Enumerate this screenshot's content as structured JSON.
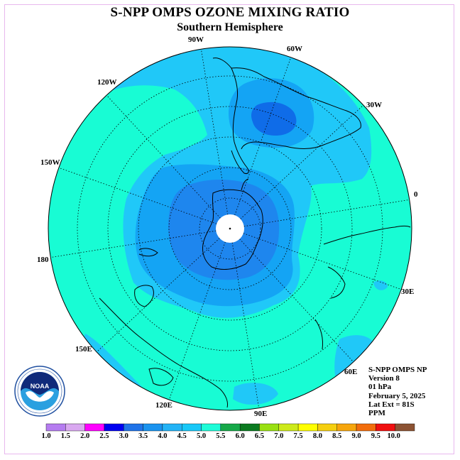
{
  "title": "S-NPP OMPS OZONE MIXING RATIO",
  "subtitle": "Southern Hemisphere",
  "longitude_labels": [
    {
      "id": "90W",
      "text": "90W"
    },
    {
      "id": "60W",
      "text": "60W"
    },
    {
      "id": "30W",
      "text": "30W"
    },
    {
      "id": "0",
      "text": "0"
    },
    {
      "id": "30E",
      "text": "30E"
    },
    {
      "id": "60E",
      "text": "60E"
    },
    {
      "id": "90E",
      "text": "90E"
    },
    {
      "id": "120E",
      "text": "120E"
    },
    {
      "id": "150E",
      "text": "150E"
    },
    {
      "id": "180",
      "text": "180"
    },
    {
      "id": "150W",
      "text": "150W"
    },
    {
      "id": "120W",
      "text": "120W"
    }
  ],
  "info": {
    "line1": "S-NPP OMPS NP",
    "line2": "Version 8",
    "line3": "01 hPa",
    "line4": "February 5, 2025",
    "line5": "Lat Ext = 81S",
    "line6": "PPM"
  },
  "logo": {
    "text": "NOAA",
    "ring_text": "NATIONAL OCEANIC AND ATMOSPHERIC ADMINISTRATION · U.S. DEPARTMENT OF COMMERCE"
  },
  "colorbar": {
    "labels": [
      "1.0",
      "1.5",
      "2.0",
      "2.5",
      "3.0",
      "3.5",
      "4.0",
      "4.5",
      "5.0",
      "5.5",
      "6.0",
      "6.5",
      "7.0",
      "7.5",
      "8.0",
      "8.5",
      "9.0",
      "9.5",
      "10.0"
    ],
    "colors": [
      "#b57cf0",
      "#d9a8f0",
      "#ff00ff",
      "#0000f0",
      "#1f73e8",
      "#1a93ef",
      "#23b3f6",
      "#18c8f8",
      "#1efcd8",
      "#16a848",
      "#0b7a20",
      "#99e012",
      "#cdea1a",
      "#ffff00",
      "#f5cf0f",
      "#f6a50c",
      "#f26d0c",
      "#f01010",
      "#8c5233"
    ]
  },
  "map_colors": {
    "level_45": "#18fcd4",
    "level_40": "#20c8f8",
    "level_35": "#14a4f4",
    "level_30": "#1e86ee",
    "level_25": "#0f6ce8",
    "pole_hole": "#ffffff",
    "coast": "#000000"
  }
}
